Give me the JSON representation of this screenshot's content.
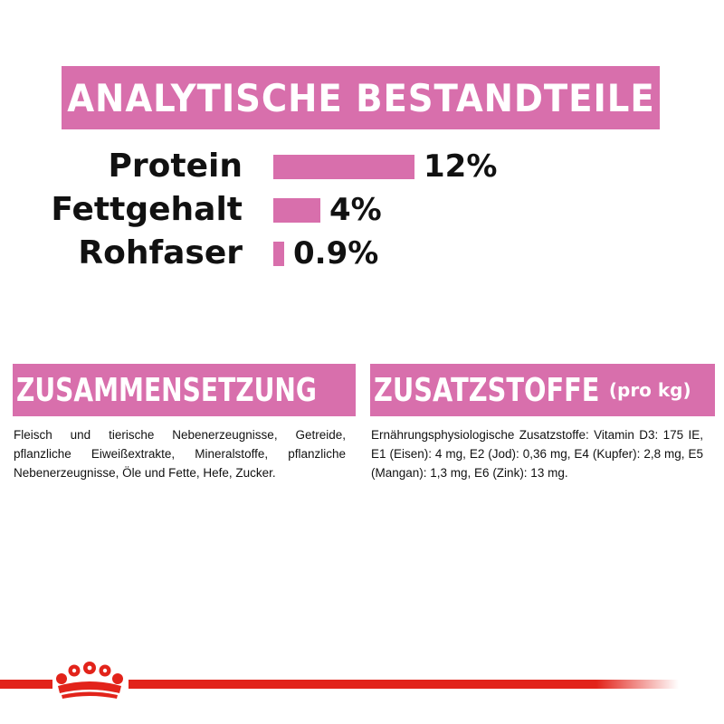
{
  "header": {
    "title": "ANALYTISCHE BESTANDTEILE"
  },
  "nutrients": [
    {
      "label": "Protein",
      "value": "12%",
      "fraction": 1.0
    },
    {
      "label": "Fettgehalt",
      "value": "4%",
      "fraction": 0.333
    },
    {
      "label": "Rohfaser",
      "value": "0.9%",
      "fraction": 0.075
    }
  ],
  "composition": {
    "title": "ZUSAMMENSETZUNG",
    "text": "Fleisch und tierische Nebenerzeugnisse, Getreide, pflanzliche Eiweißextrakte, Mineralstoffe, pflanzliche Nebenerzeugnisse, Öle und Fette, Hefe, Zucker."
  },
  "additives": {
    "title": "ZUSATZSTOFFE",
    "subtitle": "(pro kg)",
    "text": "Ernährungsphysiologische Zusatzstoffe: Vitamin D3: 175 IE, E1 (Eisen): 4 mg, E2 (Jod): 0,36 mg, E4 (Kupfer): 2,8 mg, E5 (Mangan): 1,3 mg, E6 (Zink): 13 mg."
  },
  "brand": {
    "logo": "crown-icon"
  },
  "colors": {
    "accent": "#d86fac",
    "brand_red": "#e2231a"
  }
}
